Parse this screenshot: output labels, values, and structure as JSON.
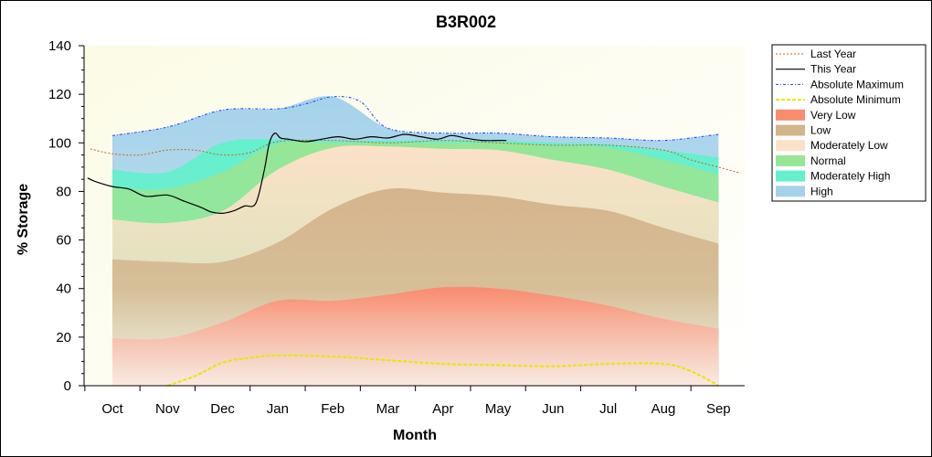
{
  "chart_data": {
    "type": "area",
    "title": "B3R002",
    "xlabel": "Month",
    "ylabel": "% Storage",
    "ylim": [
      0,
      140
    ],
    "yticks": [
      0,
      20,
      40,
      60,
      80,
      100,
      120,
      140
    ],
    "categories": [
      "Oct",
      "Nov",
      "Dec",
      "Jan",
      "Feb",
      "Mar",
      "Apr",
      "May",
      "Jun",
      "Jul",
      "Aug",
      "Sep"
    ],
    "legend_position": "right",
    "grid": false,
    "bands_x": [
      0,
      1,
      2,
      3,
      4,
      5,
      6,
      7,
      8,
      9,
      10,
      11
    ],
    "bands": [
      {
        "name": "Very Low",
        "color": "#fa8c70",
        "upper": [
          19.5,
          19.5,
          26,
          35,
          35,
          37.5,
          40.5,
          40,
          37,
          33,
          27.5,
          23.5
        ]
      },
      {
        "name": "Low",
        "color": "#d4b48c",
        "upper": [
          52,
          51,
          51,
          59,
          73,
          81,
          79.5,
          78,
          74.5,
          72,
          65,
          58.5
        ]
      },
      {
        "name": "Moderately Low",
        "color": "#fbe1c8",
        "upper": [
          68.5,
          67,
          72,
          89,
          98,
          98.5,
          97.5,
          97,
          93,
          89,
          82,
          75.5
        ]
      },
      {
        "name": "Normal",
        "color": "#96e696",
        "upper": [
          81.5,
          81,
          88,
          99.5,
          100,
          100,
          100,
          100,
          99,
          98,
          93,
          87
        ]
      },
      {
        "name": "Moderately High",
        "color": "#64f0cd",
        "upper": [
          89,
          88,
          100,
          101.5,
          101,
          101,
          101,
          101,
          100,
          99.5,
          97,
          94
        ]
      },
      {
        "name": "High",
        "color": "#a5d2eb",
        "upper": [
          103,
          106.5,
          113.5,
          114,
          119,
          106,
          104,
          104,
          102.5,
          102,
          101,
          103.5
        ]
      }
    ],
    "lines": [
      {
        "name": "Last Year",
        "color": "#c8641e",
        "dash": "2,2",
        "width": 1,
        "x": [
          -0.4,
          0,
          0.5,
          1,
          1.5,
          2,
          2.5,
          3,
          4,
          5,
          6,
          7,
          8,
          9,
          10,
          10.5,
          11,
          11.4
        ],
        "y": [
          97.5,
          95.5,
          95,
          97,
          97,
          95,
          96,
          100.5,
          101,
          100,
          101,
          100,
          99,
          99,
          97,
          93,
          90,
          87.5
        ]
      },
      {
        "name": "This Year",
        "color": "#000000",
        "dash": "",
        "width": 1.2,
        "x": [
          -0.45,
          -0.3,
          0,
          0.3,
          0.6,
          1,
          1.3,
          1.6,
          1.8,
          2,
          2.2,
          2.4,
          2.6,
          2.75,
          2.85,
          2.95,
          3.05,
          3.2,
          3.5,
          3.8,
          4.1,
          4.4,
          4.7,
          5,
          5.3,
          5.6,
          5.9,
          6.15,
          6.4,
          6.7,
          7,
          7.15
        ],
        "y": [
          85.5,
          84,
          82,
          81,
          78,
          78.5,
          76,
          73.5,
          71.5,
          71,
          72,
          74,
          75,
          88,
          100,
          104,
          102,
          101.5,
          100.5,
          101.5,
          102.5,
          101.5,
          102.5,
          102,
          103.5,
          102.5,
          101.5,
          103,
          102,
          101,
          101,
          101
        ]
      },
      {
        "name": "Absolute Maximum",
        "color": "#1e3cff",
        "dash": "3,2,1,2",
        "width": 1,
        "x": [
          0,
          1,
          2,
          3,
          3.5,
          4,
          4.5,
          5,
          6,
          7,
          8,
          9,
          10,
          11
        ],
        "y": [
          103,
          106.5,
          113.5,
          114,
          116,
          119,
          117,
          106,
          104,
          104,
          102.5,
          102,
          101,
          103.5
        ]
      },
      {
        "name": "Absolute Minimum",
        "color": "#e6e600",
        "dash": "4,2",
        "width": 2,
        "x": [
          1,
          1.5,
          2,
          2.5,
          3,
          4,
          5,
          6,
          7,
          8,
          9,
          10,
          10.5,
          11
        ],
        "y": [
          0,
          4,
          9.5,
          11.5,
          12.5,
          12,
          10.5,
          9,
          8.5,
          8,
          9,
          9,
          6,
          0
        ]
      }
    ],
    "legend": [
      "Last Year",
      "This Year",
      "Absolute Maximum",
      "Absolute Minimum",
      "Very Low",
      "Low",
      "Moderately Low",
      "Normal",
      "Moderately High",
      "High"
    ]
  }
}
